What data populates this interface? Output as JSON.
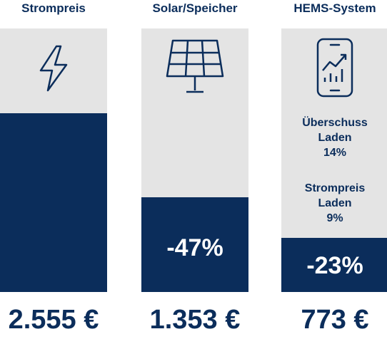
{
  "chart_data": {
    "type": "bar",
    "categories": [
      "Strompreis",
      "Solar/Speicher",
      "HEMS-System"
    ],
    "values": [
      2555,
      1353,
      773
    ],
    "value_labels": [
      "2.555 €",
      "1.353 €",
      "773 €"
    ],
    "reduction_labels": [
      "",
      "-47%",
      "-23%"
    ],
    "notes": [
      {
        "line1": "Überschuss",
        "line2": "Laden",
        "value": "14%"
      },
      {
        "line1": "Strompreis",
        "line2": "Laden",
        "value": "9%"
      }
    ],
    "ylim": [
      0,
      3760
    ],
    "icons": [
      "lightning-icon",
      "solar-panel-icon",
      "smartphone-chart-icon"
    ],
    "colors": {
      "bar": "#0b2d5b",
      "background": "#e4e4e4",
      "text": "#0b2d5b"
    }
  }
}
